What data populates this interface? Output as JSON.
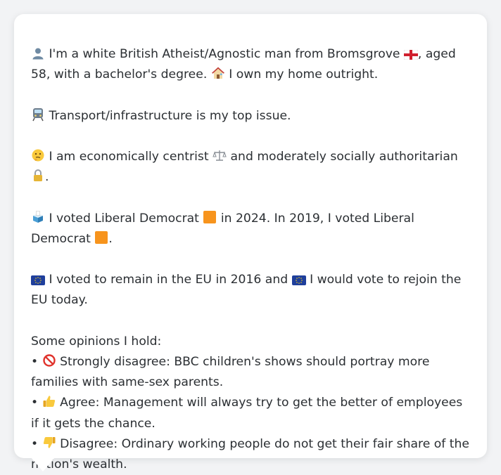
{
  "profile": {
    "intro": {
      "icon": "person-silhouette-icon",
      "text_a": "I'm a white British Atheist/Agnostic man from Bromsgrove",
      "flag_icon": "england-flag-icon",
      "text_b": ", aged 58, with a bachelor's degree.",
      "house_icon": "house-icon",
      "text_c": "I own my home outright."
    },
    "issue": {
      "icon": "train-icon",
      "text": "Transport/infrastructure is my top issue."
    },
    "ideology": {
      "icon": "thinking-face-icon",
      "text_a": "I am economically centrist",
      "scales_icon": "balance-scale-icon",
      "text_b": "and moderately socially authoritarian",
      "lock_icon": "padlock-icon",
      "text_c": "."
    },
    "votes": {
      "icon": "ballot-box-icon",
      "text_a": "I voted Liberal Democrat",
      "party_color": "#f7941d",
      "text_b": "in 2024. In 2019, I voted Liberal Democrat",
      "text_c": "."
    },
    "eu": {
      "icon": "eu-flag-icon",
      "text_a": "I voted to remain in the EU in 2016 and",
      "text_b": "I would vote to rejoin the EU today."
    },
    "opinions": {
      "heading": "Some opinions I hold:",
      "items": [
        {
          "icon": "prohibited-icon",
          "text": "Strongly disagree: BBC children's shows should portray more families with same-sex parents."
        },
        {
          "icon": "thumbs-up-icon",
          "text": "Agree: Management will always try to get the better of employees if it gets the chance."
        },
        {
          "icon": "thumbs-down-icon",
          "text": "Disagree: Ordinary working people do not get their fair share of the nation's wealth."
        }
      ]
    }
  }
}
